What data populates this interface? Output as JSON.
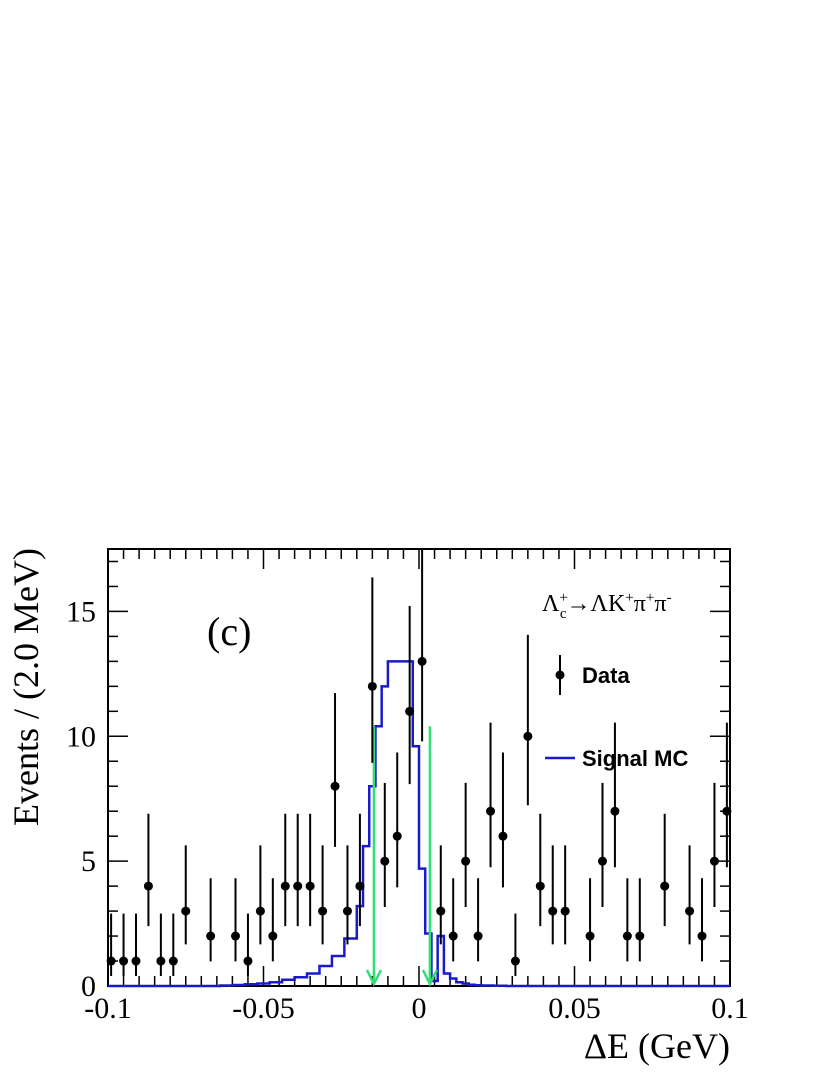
{
  "chart_data": {
    "type": "scatter",
    "panel_label": "(c)",
    "process_label": {
      "lambda_c": "Λ",
      "c_sup": "+",
      "c_sub": "c",
      "arrow": "→",
      "lambda": "Λ",
      "K": "K",
      "K_sup": "+",
      "pi1": "π",
      "pi1_sup": "+",
      "pi2": "π",
      "pi2_sup": "-"
    },
    "xlabel": "ΔE (GeV)",
    "ylabel": "Events / (2.0 MeV)",
    "xlim": [
      -0.1,
      0.1
    ],
    "ylim": [
      0,
      17.5
    ],
    "x_ticks": [
      -0.1,
      -0.05,
      0,
      0.05,
      0.1
    ],
    "x_tick_labels": [
      "-0.1",
      "-0.05",
      "0",
      "0.05",
      "0.1"
    ],
    "y_ticks": [
      0,
      5,
      10,
      15
    ],
    "y_tick_labels": [
      "0",
      "5",
      "10",
      "15"
    ],
    "legend": {
      "position": "right",
      "entries": [
        {
          "label": "Data",
          "style": "marker"
        },
        {
          "label": "Signal MC",
          "style": "line",
          "color": "#1a1acc"
        }
      ]
    },
    "series": [
      {
        "name": "Data",
        "style": "points-with-errors",
        "x": [
          -0.099,
          -0.095,
          -0.091,
          -0.087,
          -0.083,
          -0.079,
          -0.075,
          -0.067,
          -0.059,
          -0.055,
          -0.051,
          -0.047,
          -0.043,
          -0.039,
          -0.035,
          -0.031,
          -0.027,
          -0.023,
          -0.019,
          -0.015,
          -0.011,
          -0.007,
          -0.003,
          0.001,
          0.007,
          0.011,
          0.015,
          0.019,
          0.023,
          0.027,
          0.031,
          0.035,
          0.039,
          0.043,
          0.047,
          0.055,
          0.059,
          0.063,
          0.067,
          0.071,
          0.079,
          0.087,
          0.091,
          0.095,
          0.099
        ],
        "y": [
          1,
          1,
          1,
          4,
          1,
          1,
          3,
          2,
          2,
          1,
          3,
          2,
          4,
          4,
          4,
          3,
          8,
          3,
          4,
          12,
          5,
          6,
          11,
          13,
          3,
          2,
          5,
          2,
          7,
          6,
          1,
          10,
          4,
          3,
          3,
          2,
          5,
          7,
          2,
          2,
          4,
          3,
          2,
          5,
          7
        ]
      },
      {
        "name": "Signal MC",
        "style": "step",
        "color": "#1a1acc",
        "bin_edges": [
          -0.1,
          -0.064,
          -0.06,
          -0.056,
          -0.052,
          -0.048,
          -0.044,
          -0.04,
          -0.036,
          -0.032,
          -0.028,
          -0.024,
          -0.02,
          -0.018,
          -0.016,
          -0.014,
          -0.012,
          -0.01,
          -0.008,
          -0.006,
          -0.004,
          -0.002,
          0.0,
          0.002,
          0.004,
          0.006,
          0.008,
          0.01,
          0.012,
          0.014,
          0.016,
          0.018,
          0.02,
          0.024,
          0.028,
          0.032,
          0.04,
          0.1
        ],
        "values": [
          0,
          0.02,
          0.04,
          0.07,
          0.1,
          0.15,
          0.25,
          0.35,
          0.5,
          0.8,
          1.2,
          1.9,
          3.2,
          5.6,
          8.0,
          10.4,
          12.0,
          13.0,
          13.0,
          13.0,
          13.0,
          9.6,
          4.7,
          2.1,
          0.2,
          2.0,
          0.5,
          0.3,
          0.15,
          0.1,
          0.05,
          0.03,
          0.02,
          0.01,
          0,
          0,
          0
        ]
      }
    ],
    "cut_markers": {
      "color": "#33dd77",
      "x": [
        -0.0145,
        0.0035
      ],
      "y_top": 10.4
    }
  }
}
